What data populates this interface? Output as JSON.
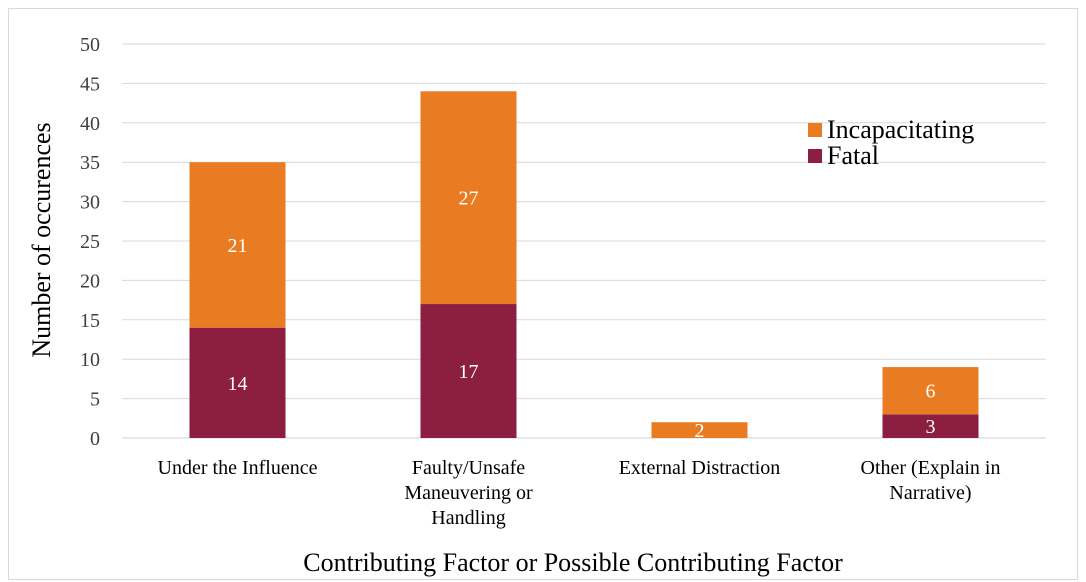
{
  "chart_data": {
    "type": "bar",
    "stacked": true,
    "categories": [
      "Under the Influence",
      "Faulty/Unsafe Maneuvering or Handling",
      "External Distraction",
      "Other (Explain in Narrative)"
    ],
    "category_label_lines": [
      [
        "Under the Influence"
      ],
      [
        "Faulty/Unsafe",
        "Maneuvering or",
        "Handling"
      ],
      [
        "External Distraction"
      ],
      [
        "Other (Explain in",
        "Narrative)"
      ]
    ],
    "series": [
      {
        "name": "Fatal",
        "values": [
          14,
          17,
          0,
          3
        ],
        "color": "#8b1e41"
      },
      {
        "name": "Incapacitating",
        "values": [
          21,
          27,
          2,
          6
        ],
        "color": "#e97c22"
      }
    ],
    "data_labels": [
      [
        "14",
        "17",
        "",
        "3"
      ],
      [
        "21",
        "27",
        "2",
        "6"
      ]
    ],
    "title": "",
    "xlabel": "Contributing Factor or Possible Contributing Factor",
    "ylabel": "Number of occurences",
    "ylim": [
      0,
      50
    ],
    "yticks": [
      0,
      5,
      10,
      15,
      20,
      25,
      30,
      35,
      40,
      45,
      50
    ],
    "grid": true,
    "legend_position": "top-right"
  }
}
